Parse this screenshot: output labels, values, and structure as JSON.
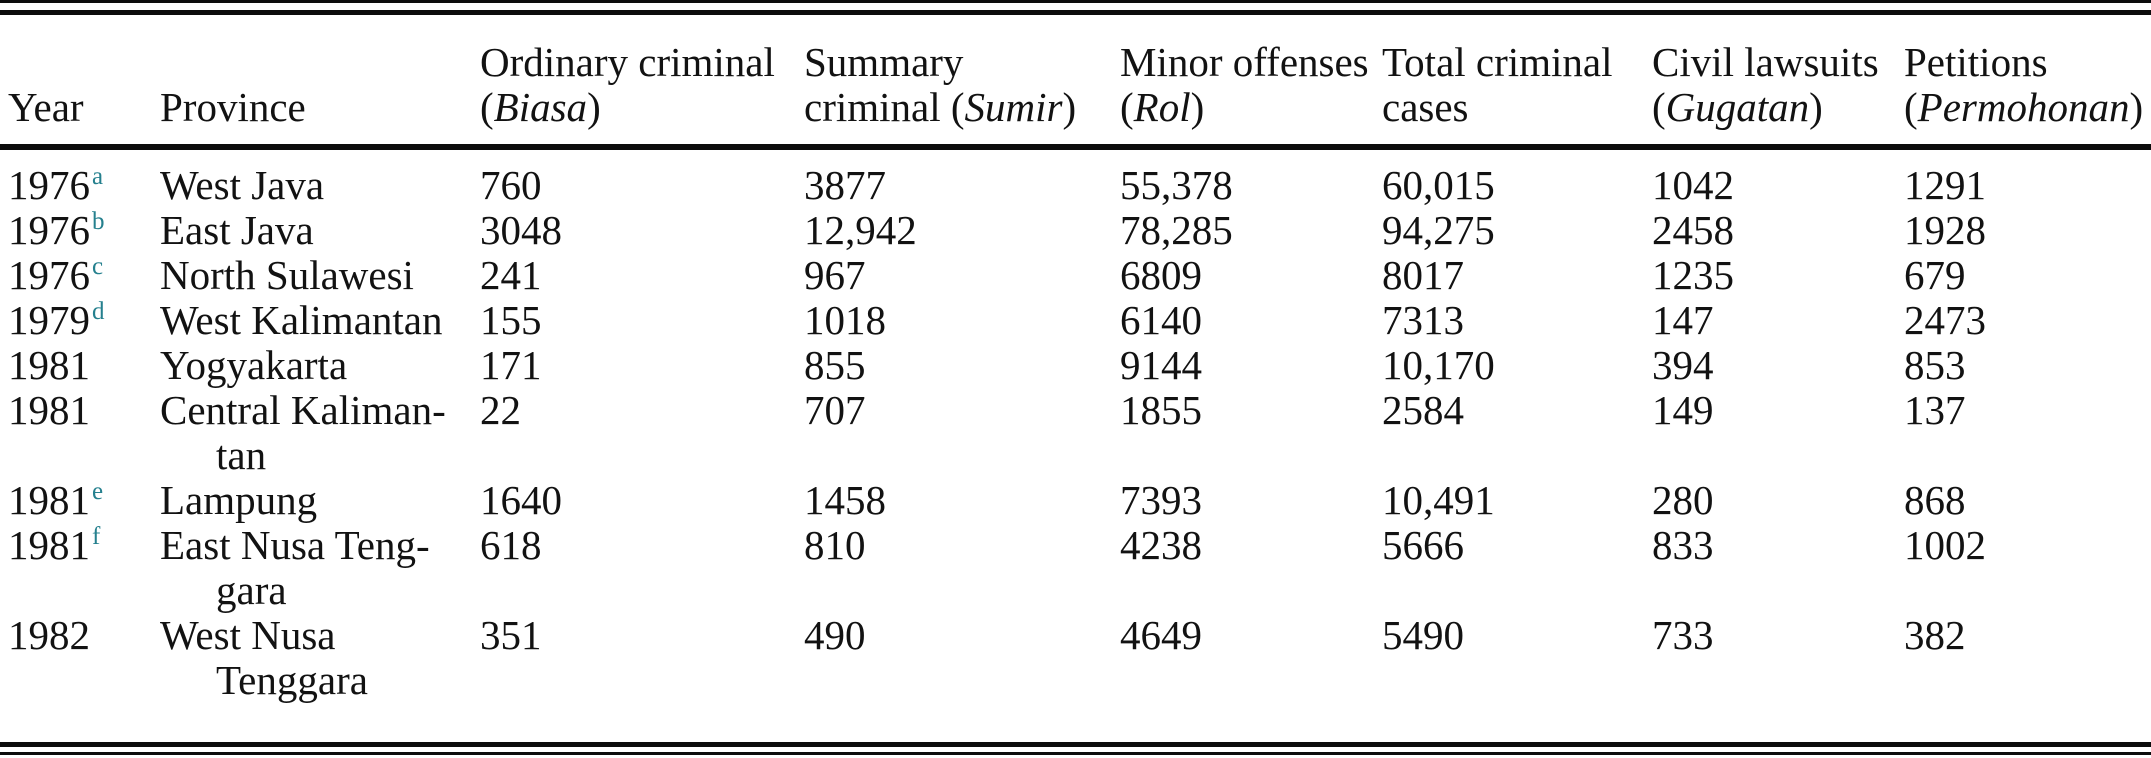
{
  "colors": {
    "background": "#ffffff",
    "text": "#121212",
    "rule": "#0c0c0c",
    "note_superscript": "#25808e"
  },
  "table": {
    "columns": [
      {
        "id": "year",
        "lines": [
          [
            {
              "t": "Year"
            }
          ]
        ]
      },
      {
        "id": "province",
        "lines": [
          [
            {
              "t": "Province"
            }
          ]
        ]
      },
      {
        "id": "ordinary-criminal",
        "lines": [
          [
            {
              "t": "Ordinary criminal"
            }
          ],
          [
            {
              "t": "("
            },
            {
              "t": "Biasa",
              "i": true
            },
            {
              "t": ")"
            }
          ]
        ]
      },
      {
        "id": "summary-criminal",
        "lines": [
          [
            {
              "t": "Summary"
            }
          ],
          [
            {
              "t": "criminal ("
            },
            {
              "t": "Sumir",
              "i": true
            },
            {
              "t": ")"
            }
          ]
        ]
      },
      {
        "id": "minor-offenses",
        "lines": [
          [
            {
              "t": "Minor offenses"
            }
          ],
          [
            {
              "t": "("
            },
            {
              "t": "Rol",
              "i": true
            },
            {
              "t": ")"
            }
          ]
        ]
      },
      {
        "id": "total-criminal-cases",
        "lines": [
          [
            {
              "t": "Total criminal"
            }
          ],
          [
            {
              "t": "cases"
            }
          ]
        ]
      },
      {
        "id": "civil-lawsuits",
        "lines": [
          [
            {
              "t": "Civil lawsuits"
            }
          ],
          [
            {
              "t": "("
            },
            {
              "t": "Gugatan",
              "i": true
            },
            {
              "t": ")"
            }
          ]
        ]
      },
      {
        "id": "petitions",
        "lines": [
          [
            {
              "t": "Petitions"
            }
          ],
          [
            {
              "t": "("
            },
            {
              "t": "Permohonan",
              "i": true
            },
            {
              "t": ")"
            }
          ]
        ]
      }
    ],
    "rows": [
      {
        "year": "1976",
        "note": "a",
        "province_lines": [
          "West Java"
        ],
        "values": [
          "760",
          "3877",
          "55,378",
          "60,015",
          "1042",
          "1291"
        ]
      },
      {
        "year": "1976",
        "note": "b",
        "province_lines": [
          "East Java"
        ],
        "values": [
          "3048",
          "12,942",
          "78,285",
          "94,275",
          "2458",
          "1928"
        ]
      },
      {
        "year": "1976",
        "note": "c",
        "province_lines": [
          "North Sulawesi"
        ],
        "values": [
          "241",
          "967",
          "6809",
          "8017",
          "1235",
          "679"
        ]
      },
      {
        "year": "1979",
        "note": "d",
        "province_lines": [
          "West Kalimantan"
        ],
        "values": [
          "155",
          "1018",
          "6140",
          "7313",
          "147",
          "2473"
        ]
      },
      {
        "year": "1981",
        "note": "",
        "province_lines": [
          "Yogyakarta"
        ],
        "values": [
          "171",
          "855",
          "9144",
          "10,170",
          "394",
          "853"
        ]
      },
      {
        "year": "1981",
        "note": "",
        "province_lines": [
          "Central Kaliman-",
          "tan"
        ],
        "values": [
          "22",
          "707",
          "1855",
          "2584",
          "149",
          "137"
        ]
      },
      {
        "year": "1981",
        "note": "e",
        "province_lines": [
          "Lampung"
        ],
        "values": [
          "1640",
          "1458",
          "7393",
          "10,491",
          "280",
          "868"
        ]
      },
      {
        "year": "1981",
        "note": "f",
        "province_lines": [
          "East Nusa Teng-",
          "gara"
        ],
        "values": [
          "618",
          "810",
          "4238",
          "5666",
          "833",
          "1002"
        ]
      },
      {
        "year": "1982",
        "note": "",
        "province_lines": [
          "West Nusa",
          "Tenggara"
        ],
        "values": [
          "351",
          "490",
          "4649",
          "5490",
          "733",
          "382"
        ]
      }
    ]
  }
}
